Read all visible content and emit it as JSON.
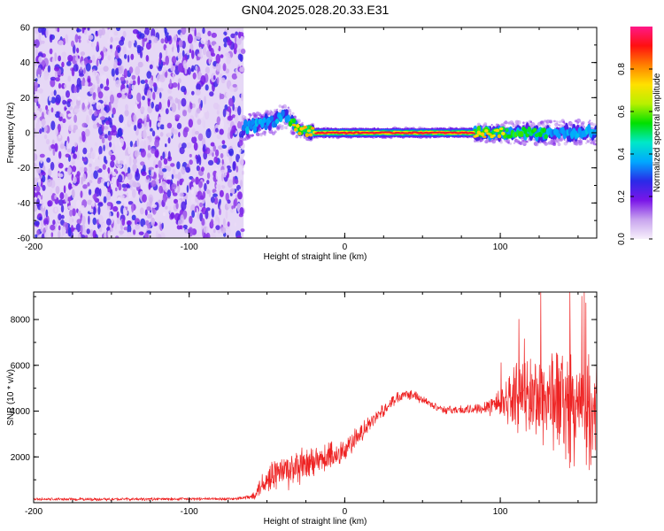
{
  "page": {
    "title": "GN04.2025.028.20.33.E31"
  },
  "chart_data": [
    {
      "type": "heatmap",
      "title": "GN04.2025.028.20.33.E31",
      "xlabel": "Height of straight line (km)",
      "ylabel": "Frequency (Hz)",
      "xlim": [
        -200,
        162
      ],
      "ylim": [
        -60,
        60
      ],
      "x_ticks": [
        -200,
        -100,
        0,
        100
      ],
      "x_tick_labels": [
        "-200",
        "-100",
        "0",
        "100"
      ],
      "y_ticks": [
        -60,
        -40,
        -20,
        0,
        20,
        40,
        60
      ],
      "y_tick_labels": [
        "-60",
        "-40",
        "-20",
        "0",
        "20",
        "40",
        "60"
      ],
      "noise_region_x": [
        -200,
        -65
      ],
      "signal_track": [
        {
          "x": -65,
          "y": 3,
          "amp": 0.35
        },
        {
          "x": -55,
          "y": 5,
          "amp": 0.4
        },
        {
          "x": -45,
          "y": 6,
          "amp": 0.4
        },
        {
          "x": -38,
          "y": 10,
          "amp": 0.3
        },
        {
          "x": -30,
          "y": 2,
          "amp": 0.8
        },
        {
          "x": -20,
          "y": 0,
          "amp": 0.85
        },
        {
          "x": -10,
          "y": 0,
          "amp": 0.9
        },
        {
          "x": 0,
          "y": 0,
          "amp": 0.95
        },
        {
          "x": 20,
          "y": 0,
          "amp": 0.95
        },
        {
          "x": 40,
          "y": 0,
          "amp": 0.95
        },
        {
          "x": 60,
          "y": 0,
          "amp": 0.95
        },
        {
          "x": 80,
          "y": 0,
          "amp": 0.9
        },
        {
          "x": 95,
          "y": 0,
          "amp": 0.7
        },
        {
          "x": 110,
          "y": 0,
          "amp": 0.5
        },
        {
          "x": 130,
          "y": 0,
          "amp": 0.45
        },
        {
          "x": 150,
          "y": 0,
          "amp": 0.4
        },
        {
          "x": 162,
          "y": 0,
          "amp": 0.4
        }
      ],
      "colorbar": {
        "label": "Normalized spectral amplitude",
        "range": [
          0,
          1
        ],
        "ticks": [
          0.0,
          0.2,
          0.4,
          0.6,
          0.8
        ],
        "tick_labels": [
          "0.0",
          "0.2",
          "0.4",
          "0.6",
          "0.8"
        ],
        "colors": [
          "#f7f0fb",
          "#c8a4ee",
          "#7a16e8",
          "#2a2ae8",
          "#00a8ff",
          "#00e8c8",
          "#00e000",
          "#b8f000",
          "#ffe000",
          "#ff8000",
          "#ff1010",
          "#ff1888"
        ]
      }
    },
    {
      "type": "line",
      "xlabel": "Height of straight line (km)",
      "ylabel": "SNR (10 * v/v)",
      "xlim": [
        -200,
        162
      ],
      "ylim": [
        0,
        9200
      ],
      "x_ticks": [
        -200,
        -100,
        0,
        100
      ],
      "x_tick_labels": [
        "-200",
        "-100",
        "0",
        "100"
      ],
      "y_ticks": [
        2000,
        4000,
        6000,
        8000
      ],
      "y_tick_labels": [
        "2000",
        "4000",
        "6000",
        "8000"
      ],
      "color": "#ee2222",
      "envelope": [
        {
          "x": -200,
          "mean": 150,
          "spread": 80
        },
        {
          "x": -150,
          "mean": 150,
          "spread": 80
        },
        {
          "x": -100,
          "mean": 160,
          "spread": 80
        },
        {
          "x": -70,
          "mean": 170,
          "spread": 80
        },
        {
          "x": -60,
          "mean": 250,
          "spread": 150
        },
        {
          "x": -52,
          "mean": 900,
          "spread": 700
        },
        {
          "x": -45,
          "mean": 1300,
          "spread": 900
        },
        {
          "x": -35,
          "mean": 1400,
          "spread": 1000
        },
        {
          "x": -20,
          "mean": 1700,
          "spread": 900
        },
        {
          "x": -10,
          "mean": 2000,
          "spread": 800
        },
        {
          "x": 0,
          "mean": 2300,
          "spread": 700
        },
        {
          "x": 10,
          "mean": 3000,
          "spread": 500
        },
        {
          "x": 20,
          "mean": 3700,
          "spread": 350
        },
        {
          "x": 30,
          "mean": 4400,
          "spread": 300
        },
        {
          "x": 38,
          "mean": 4800,
          "spread": 300
        },
        {
          "x": 45,
          "mean": 4700,
          "spread": 250
        },
        {
          "x": 55,
          "mean": 4300,
          "spread": 200
        },
        {
          "x": 65,
          "mean": 4050,
          "spread": 200
        },
        {
          "x": 80,
          "mean": 4050,
          "spread": 250
        },
        {
          "x": 90,
          "mean": 4200,
          "spread": 350
        },
        {
          "x": 100,
          "mean": 4400,
          "spread": 900
        },
        {
          "x": 110,
          "mean": 4700,
          "spread": 1600
        },
        {
          "x": 120,
          "mean": 4600,
          "spread": 2200
        },
        {
          "x": 135,
          "mean": 4600,
          "spread": 2800
        },
        {
          "x": 145,
          "mean": 4200,
          "spread": 2900
        },
        {
          "x": 155,
          "mean": 4000,
          "spread": 2800
        },
        {
          "x": 162,
          "mean": 3800,
          "spread": 2700
        }
      ]
    }
  ]
}
